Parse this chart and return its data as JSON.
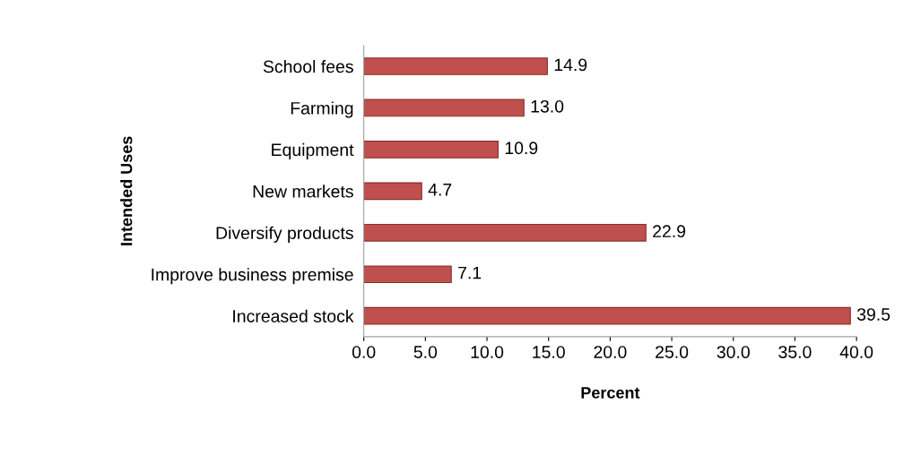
{
  "chart_data": {
    "type": "bar",
    "orientation": "horizontal",
    "xlabel": "Percent",
    "ylabel": "Intended Uses",
    "categories": [
      "School fees",
      "Farming",
      "Equipment",
      "New markets",
      "Diversify products",
      "Improve business premise",
      "Increased stock"
    ],
    "values": [
      14.9,
      13.0,
      10.9,
      4.7,
      22.9,
      7.1,
      39.5
    ],
    "value_labels": [
      "14.9",
      "13.0",
      "10.9",
      "4.7",
      "22.9",
      "7.1",
      "39.5"
    ],
    "color": "#c0504d",
    "xlim": [
      0,
      40
    ],
    "xticks": [
      {
        "value": 0,
        "label": "0.0"
      },
      {
        "value": 5,
        "label": "5.0"
      },
      {
        "value": 10,
        "label": "10.0"
      },
      {
        "value": 15,
        "label": "15.0"
      },
      {
        "value": 20,
        "label": "20.0"
      },
      {
        "value": 25,
        "label": "25.0"
      },
      {
        "value": 30,
        "label": "30.0"
      },
      {
        "value": 35,
        "label": "35.0"
      },
      {
        "value": 40,
        "label": "40.0"
      }
    ],
    "grid": false,
    "legend": false
  }
}
